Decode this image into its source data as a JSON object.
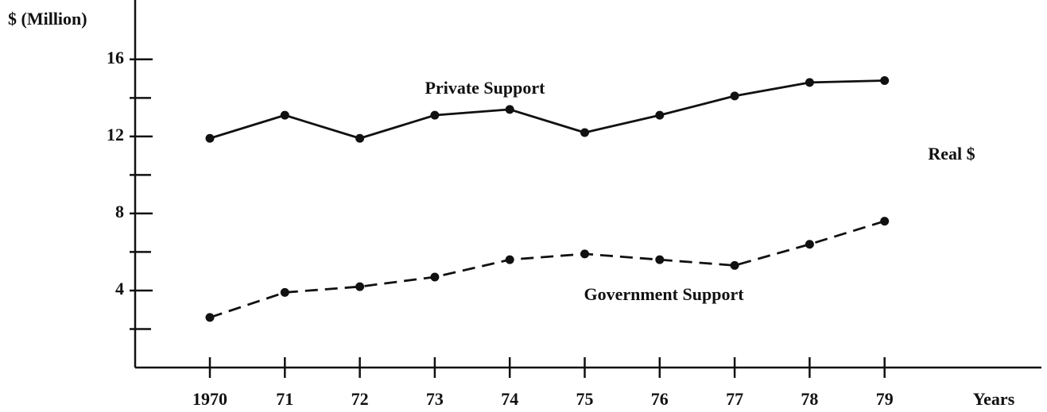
{
  "chart_data": {
    "type": "line",
    "y_label": "$ (Million)",
    "x_label": "Years",
    "annotation": "Real $",
    "categories": [
      "1970",
      "71",
      "72",
      "73",
      "74",
      "75",
      "76",
      "77",
      "78",
      "79"
    ],
    "series": [
      {
        "name": "Private Support",
        "color": "#111111",
        "dashed": false,
        "values": [
          11.9,
          13.1,
          11.9,
          13.1,
          13.4,
          12.2,
          13.1,
          14.1,
          14.8,
          14.9
        ]
      },
      {
        "name": "Government Support",
        "color": "#111111",
        "dashed": true,
        "values": [
          2.6,
          3.9,
          4.2,
          4.7,
          5.6,
          5.9,
          5.6,
          5.3,
          6.4,
          7.6
        ]
      }
    ],
    "ylim": [
      0,
      19
    ],
    "yticks": [
      4,
      8,
      12,
      16
    ],
    "yminorticks": [
      2,
      6,
      10,
      14
    ],
    "grid": false
  }
}
